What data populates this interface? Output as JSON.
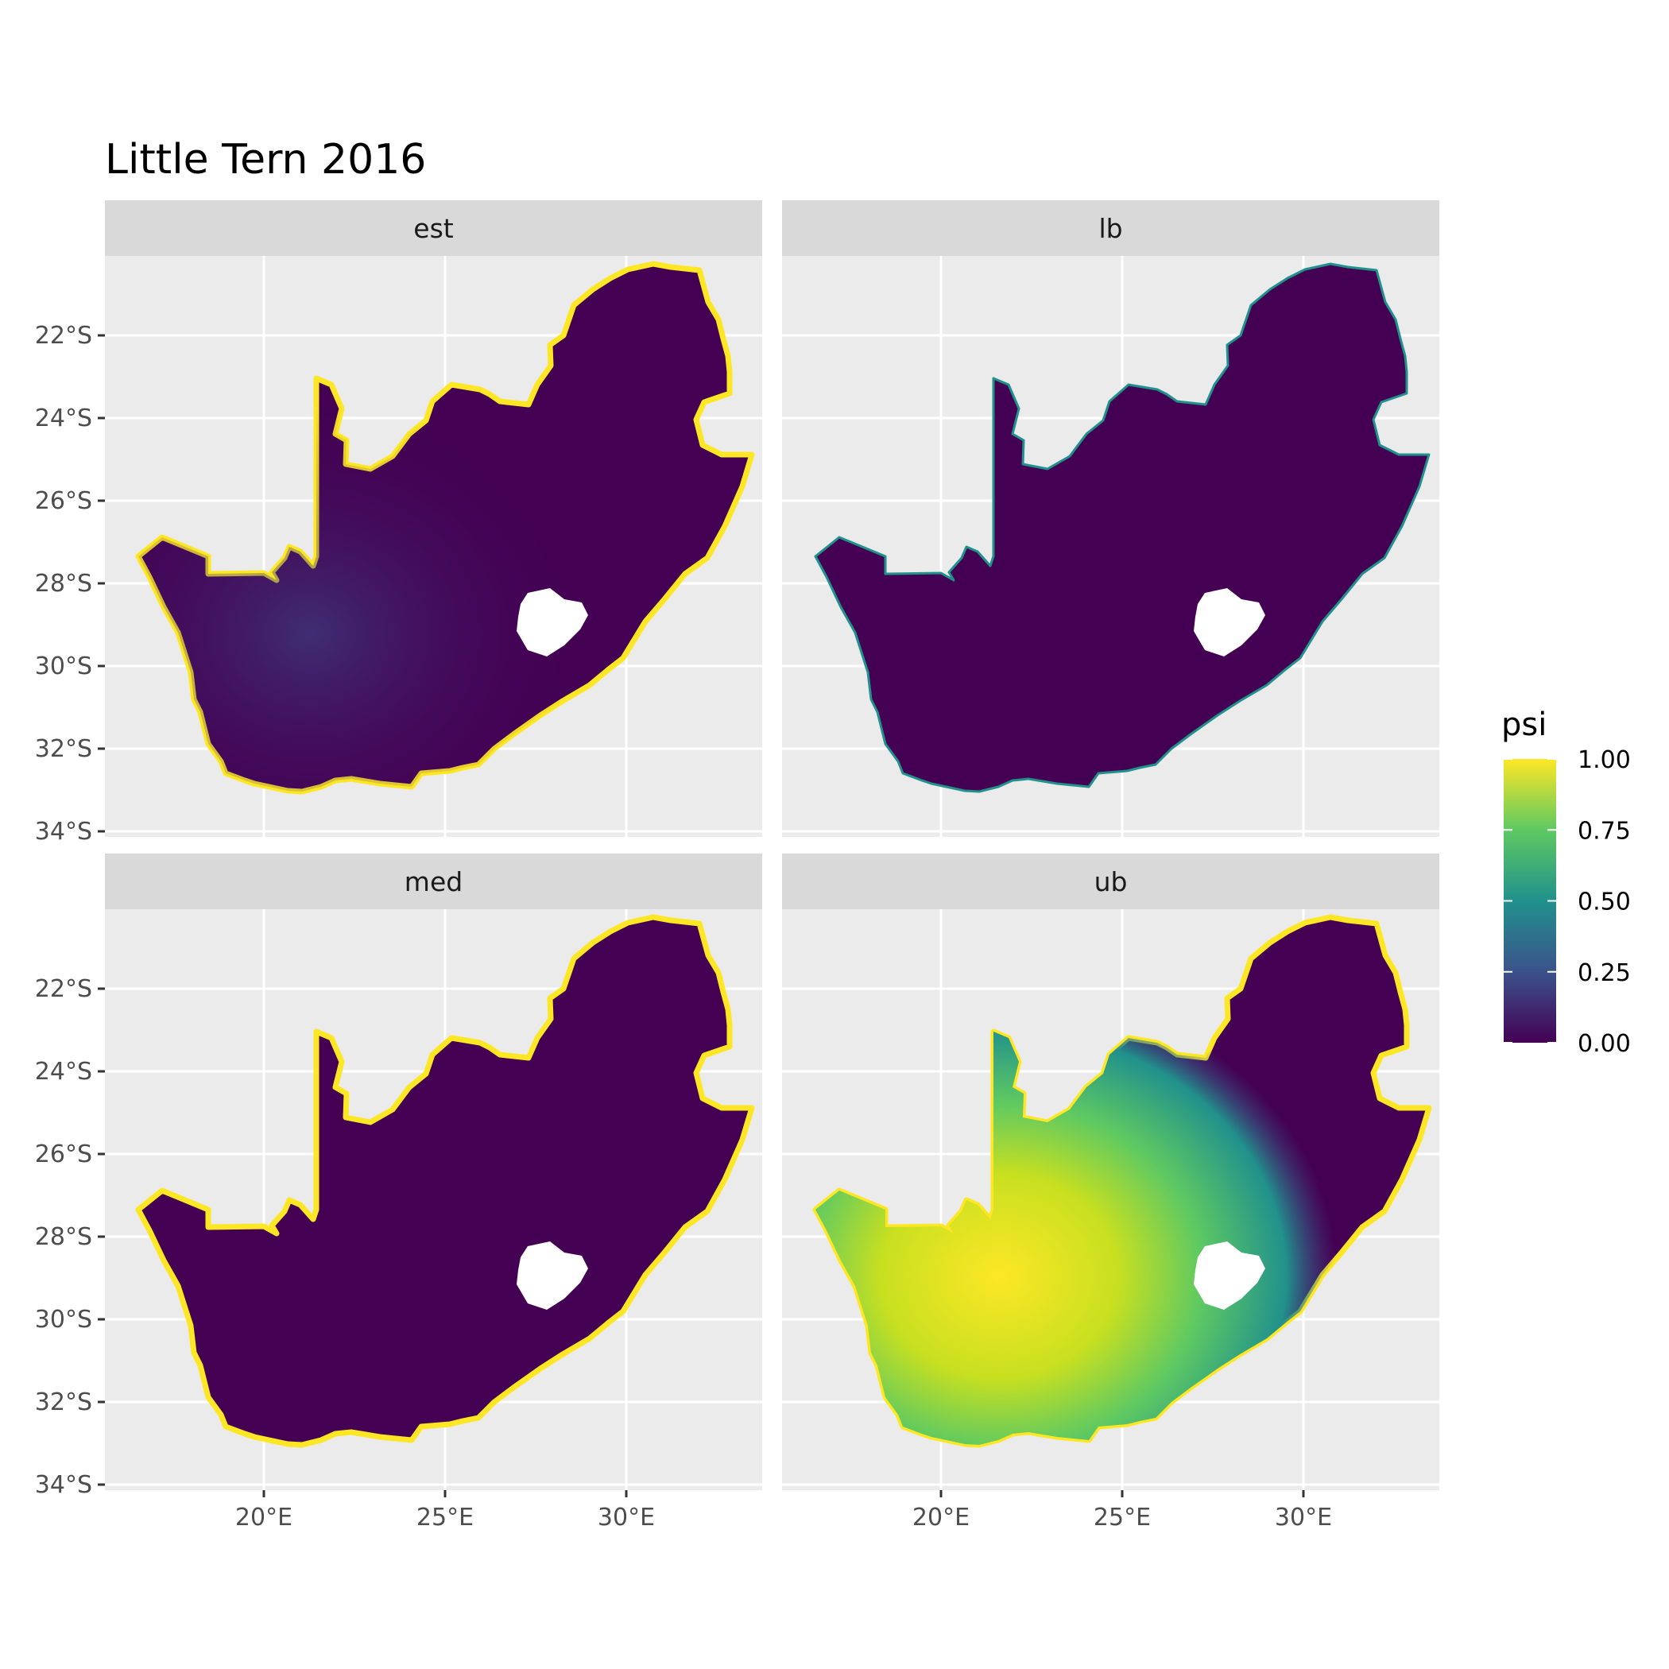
{
  "title": "Little Tern 2016",
  "panels": [
    {
      "id": "est",
      "label": "est"
    },
    {
      "id": "lb",
      "label": "lb"
    },
    {
      "id": "med",
      "label": "med"
    },
    {
      "id": "ub",
      "label": "ub"
    }
  ],
  "axes": {
    "x_ticks": [
      {
        "value": 20,
        "label": "20°E"
      },
      {
        "value": 25,
        "label": "25°E"
      },
      {
        "value": 30,
        "label": "30°E"
      }
    ],
    "y_ticks": [
      {
        "value": -22,
        "label": "22°S"
      },
      {
        "value": -24,
        "label": "24°S"
      },
      {
        "value": -26,
        "label": "26°S"
      },
      {
        "value": -28,
        "label": "28°S"
      },
      {
        "value": -30,
        "label": "30°S"
      },
      {
        "value": -32,
        "label": "32°S"
      },
      {
        "value": -34,
        "label": "34°S"
      }
    ]
  },
  "legend": {
    "title": "psi",
    "labels": [
      "1.00",
      "0.75",
      "0.50",
      "0.25",
      "0.00"
    ],
    "colors": [
      "#440154",
      "#3b528b",
      "#21918c",
      "#5ec962",
      "#fde725"
    ]
  },
  "colors": {
    "panel_background": "#ebebeb",
    "strip_background": "#d9d9d9",
    "grid": "#ffffff",
    "low": "#440154",
    "mid": "#21918c",
    "high": "#fde725"
  }
}
